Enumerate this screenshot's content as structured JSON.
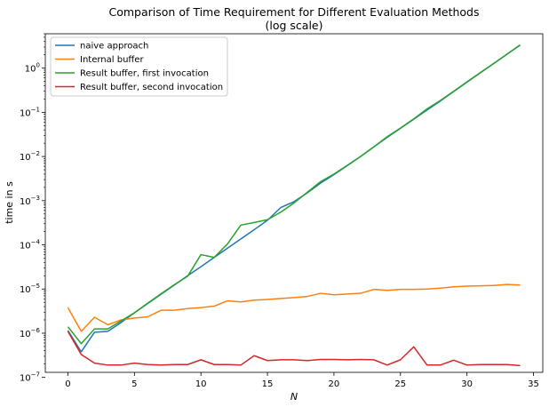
{
  "chart_data": {
    "type": "line",
    "title": "Comparison of Time Requirement for Different Evaluation Methods",
    "subtitle": "(log scale)",
    "xlabel": "N",
    "ylabel": "time in s",
    "xlim": [
      -1.7,
      35.7
    ],
    "ylim": [
      1.3e-07,
      6
    ],
    "yscale": "log",
    "grid": false,
    "legend_position": "top-left",
    "x": [
      0,
      1,
      2,
      3,
      4,
      5,
      6,
      7,
      8,
      9,
      10,
      11,
      12,
      13,
      14,
      15,
      16,
      17,
      18,
      19,
      20,
      21,
      22,
      23,
      24,
      25,
      26,
      27,
      28,
      29,
      30,
      31,
      32,
      33,
      34
    ],
    "xticks": [
      0,
      5,
      10,
      15,
      20,
      25,
      30,
      35
    ],
    "xtick_labels": [
      "0",
      "5",
      "10",
      "15",
      "20",
      "25",
      "30",
      "35"
    ],
    "yticks": [
      1e-07,
      1e-06,
      1e-05,
      0.0001,
      0.001,
      0.01,
      0.1,
      1
    ],
    "ytick_labels": [
      {
        "base": "10",
        "exp": "−7"
      },
      {
        "base": "10",
        "exp": "−6"
      },
      {
        "base": "10",
        "exp": "−5"
      },
      {
        "base": "10",
        "exp": "−4"
      },
      {
        "base": "10",
        "exp": "−3"
      },
      {
        "base": "10",
        "exp": "−2"
      },
      {
        "base": "10",
        "exp": "−1"
      },
      {
        "base": "10",
        "exp": "0"
      }
    ],
    "series": [
      {
        "name": "naive approach",
        "color": "#1f77b4",
        "values": [
          1.15e-06,
          3.8e-07,
          1.05e-06,
          1.1e-06,
          1.75e-06,
          2.9e-06,
          4.7e-06,
          7.6e-06,
          1.23e-05,
          2e-05,
          3.2e-05,
          5.2e-05,
          8.4e-05,
          0.000136,
          0.00022,
          0.00036,
          0.0007,
          0.00095,
          0.0015,
          0.0025,
          0.0039,
          0.0062,
          0.01,
          0.0165,
          0.027,
          0.0435,
          0.07,
          0.113,
          0.18,
          0.295,
          0.48,
          0.78,
          1.26,
          2.05,
          3.33
        ]
      },
      {
        "name": "Internal buffer",
        "color": "#ff7f0e",
        "values": [
          3.8e-06,
          1.1e-06,
          2.3e-06,
          1.55e-06,
          2e-06,
          2.2e-06,
          2.35e-06,
          3.3e-06,
          3.3e-06,
          3.6e-06,
          3.8e-06,
          4.1e-06,
          5.4e-06,
          5.1e-06,
          5.6e-06,
          5.8e-06,
          6.1e-06,
          6.4e-06,
          6.8e-06,
          8e-06,
          7.4e-06,
          7.7e-06,
          8e-06,
          9.8e-06,
          9.3e-06,
          9.8e-06,
          9.8e-06,
          1e-05,
          1.05e-05,
          1.12e-05,
          1.16e-05,
          1.18e-05,
          1.2e-05,
          1.27e-05,
          1.23e-05
        ]
      },
      {
        "name": "Result buffer, first invocation",
        "color": "#2ca02c",
        "values": [
          1.4e-06,
          5.8e-07,
          1.25e-06,
          1.25e-06,
          1.9e-06,
          2.9e-06,
          4.8e-06,
          7.8e-06,
          1.25e-05,
          1.95e-05,
          6e-05,
          5.2e-05,
          0.000105,
          0.00028,
          0.00032,
          0.00037,
          0.00055,
          0.00089,
          0.00155,
          0.0027,
          0.004,
          0.0063,
          0.01,
          0.0165,
          0.028,
          0.044,
          0.071,
          0.12,
          0.185,
          0.3,
          0.49,
          0.79,
          1.27,
          2.07,
          3.37
        ]
      },
      {
        "name": "Result buffer, second invocation",
        "color": "#d62728",
        "values": [
          1.1e-06,
          3.3e-07,
          2.1e-07,
          1.9e-07,
          1.9e-07,
          2.1e-07,
          1.95e-07,
          1.9e-07,
          1.95e-07,
          1.95e-07,
          2.5e-07,
          1.95e-07,
          1.95e-07,
          1.9e-07,
          3.1e-07,
          2.4e-07,
          2.5e-07,
          2.5e-07,
          2.4e-07,
          2.55e-07,
          2.55e-07,
          2.5e-07,
          2.55e-07,
          2.5e-07,
          1.9e-07,
          2.5e-07,
          4.9e-07,
          1.9e-07,
          1.9e-07,
          2.45e-07,
          1.9e-07,
          1.95e-07,
          1.95e-07,
          1.95e-07,
          1.85e-07
        ]
      }
    ]
  }
}
